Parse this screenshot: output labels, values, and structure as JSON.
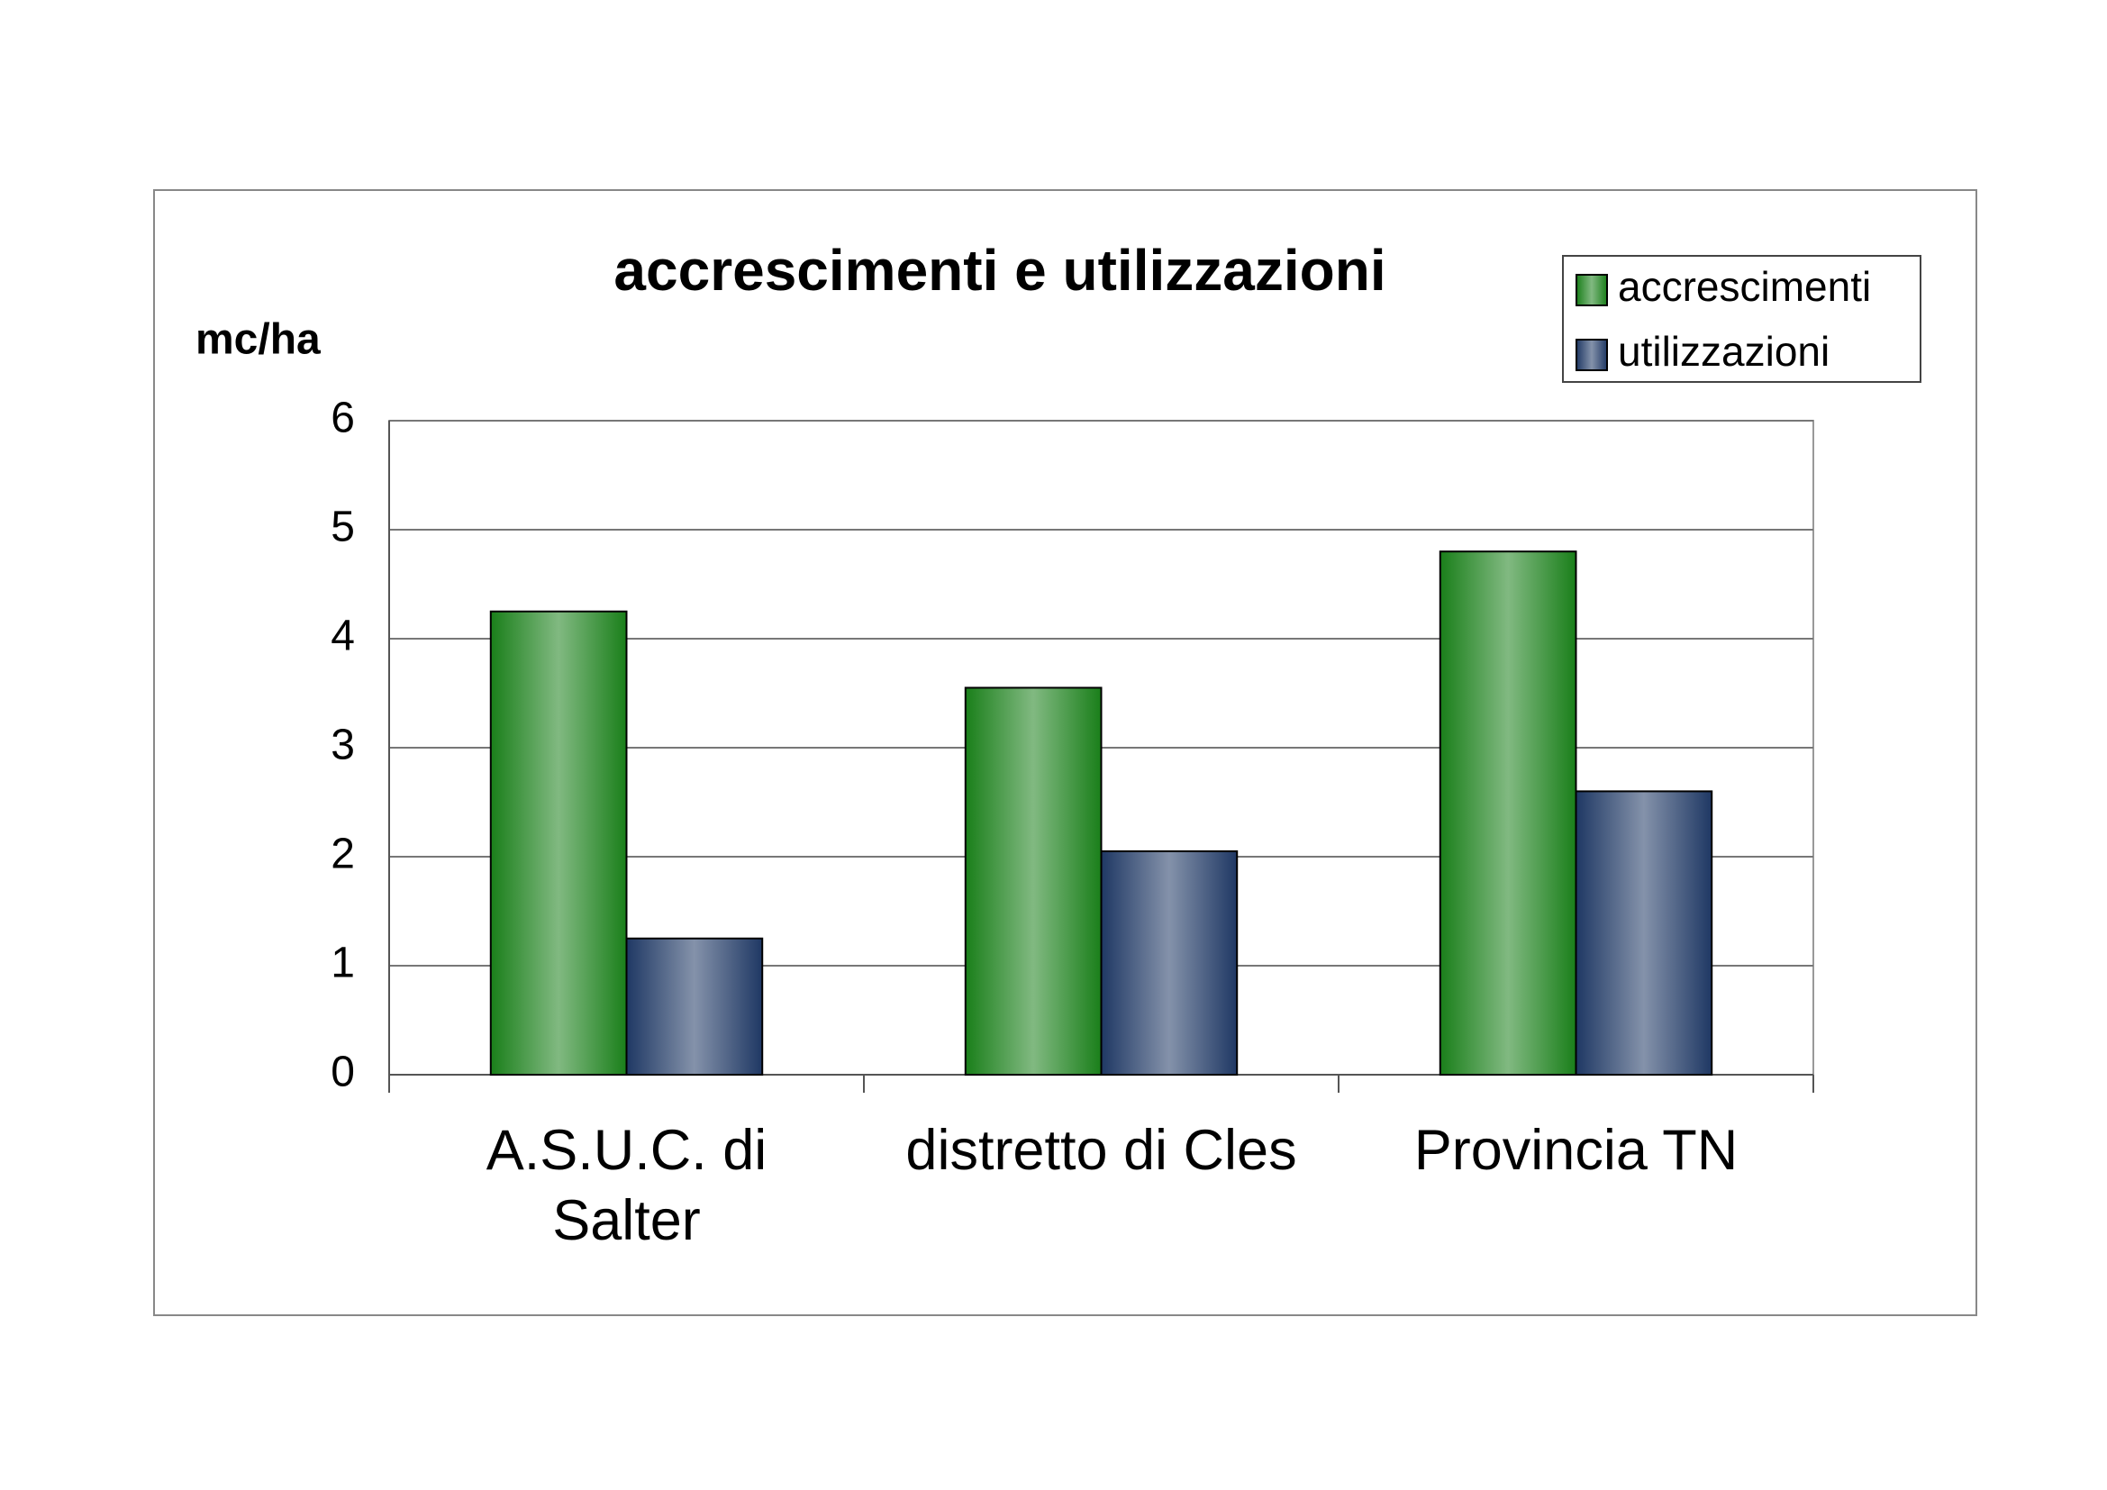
{
  "chart_data": {
    "type": "bar",
    "title": "accrescimenti e utilizzazioni",
    "y_label": "mc/ha",
    "categories": [
      "A.S.U.C. di Salter",
      "distretto di Cles",
      "Provincia TN"
    ],
    "series": [
      {
        "name": "accrescimenti",
        "color": "#1a7f1a",
        "values": [
          4.25,
          3.55,
          4.8
        ]
      },
      {
        "name": "utilizzazioni",
        "color": "#1f3864",
        "values": [
          1.25,
          2.05,
          2.6
        ]
      }
    ],
    "ylim": [
      0,
      6
    ],
    "yticks": [
      0,
      1,
      2,
      3,
      4,
      5,
      6
    ],
    "grid": true,
    "legend": "top-right"
  }
}
